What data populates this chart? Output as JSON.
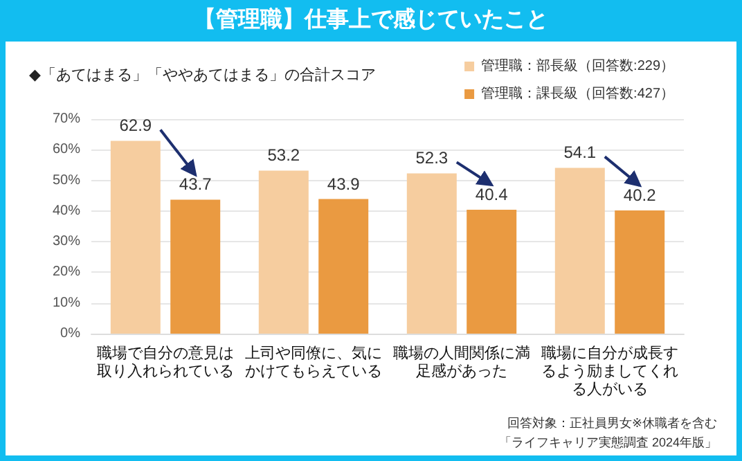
{
  "chart_data": {
    "type": "bar",
    "title": "【管理職】仕事上で感じていたこと",
    "subtitle": "◆「あてはまる」「ややあてはまる」の合計スコア",
    "categories": [
      "職場で自分の意見は取り入れられている",
      "上司や同僚に、気にかけてもらえている",
      "職場の人間関係に満足感があった",
      "職場に自分が成長するよう励ましてくれる人がいる"
    ],
    "series": [
      {
        "name": "管理職：部長級（回答数:229）",
        "color": "#f6cd9f",
        "values": [
          62.9,
          53.2,
          52.3,
          54.1
        ]
      },
      {
        "name": "管理職：課長級（回答数:427）",
        "color": "#ea9a41",
        "values": [
          43.7,
          43.9,
          40.4,
          40.2
        ]
      }
    ],
    "ylim": [
      0,
      70
    ],
    "yticks": [
      {
        "value": 0,
        "label": "0%"
      },
      {
        "value": 10,
        "label": "10%"
      },
      {
        "value": 20,
        "label": "20%"
      },
      {
        "value": 30,
        "label": "30%"
      },
      {
        "value": 40,
        "label": "40%"
      },
      {
        "value": 50,
        "label": "50%"
      },
      {
        "value": 60,
        "label": "60%"
      },
      {
        "value": 70,
        "label": "70%"
      }
    ],
    "grid": "y",
    "legend": "top right",
    "data_labels": true,
    "annotations": [
      "回答対象：正社員男女※休職者を含む",
      "「ライフキャリア実態調査 2024年版」"
    ]
  }
}
